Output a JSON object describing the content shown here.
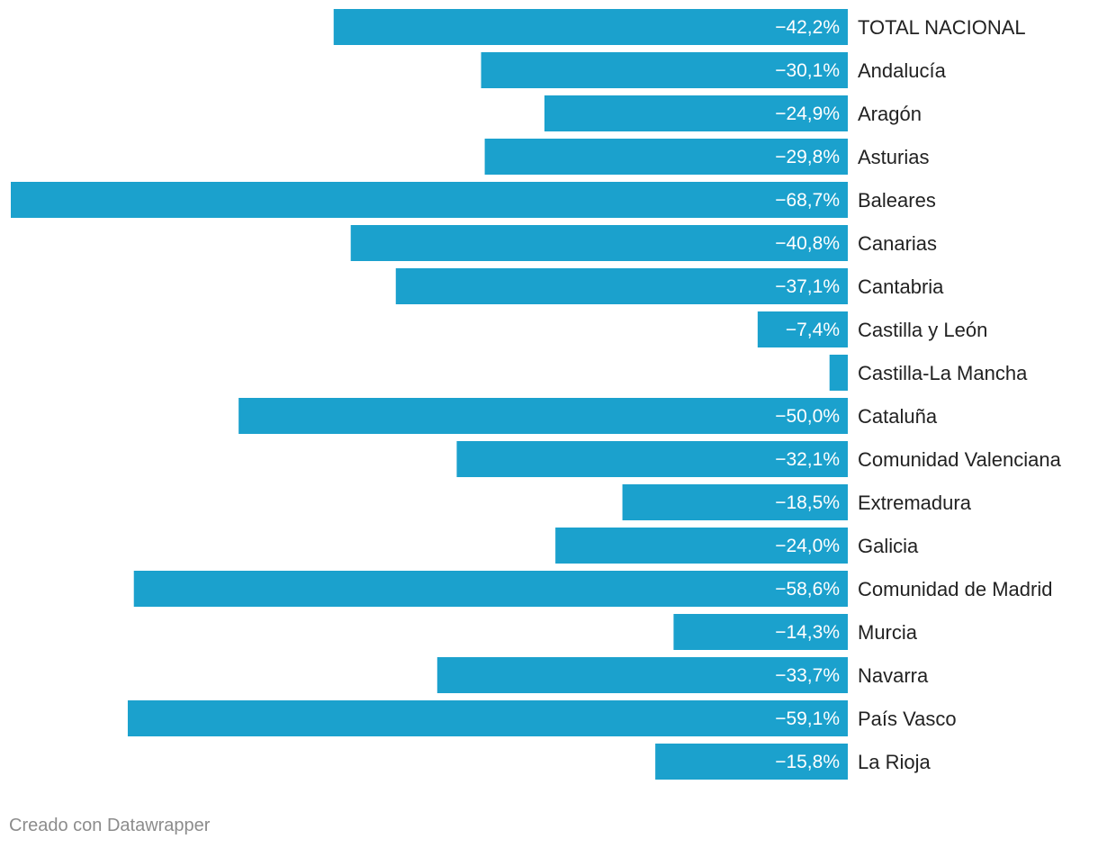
{
  "chart_data": {
    "type": "bar",
    "orientation": "horizontal",
    "bar_color": "#1ba1cd",
    "categories": [
      "TOTAL NACIONAL",
      "Andalucía",
      "Aragón",
      "Asturias",
      "Baleares",
      "Canarias",
      "Cantabria",
      "Castilla y León",
      "Castilla-La Mancha",
      "Cataluña",
      "Comunidad Valenciana",
      "Extremadura",
      "Galicia",
      "Comunidad de Madrid",
      "Murcia",
      "Navarra",
      "País Vasco",
      "La Rioja"
    ],
    "values": [
      -42.2,
      -30.1,
      -24.9,
      -29.8,
      -68.7,
      -40.8,
      -37.1,
      -7.4,
      -1.5,
      -50.0,
      -32.1,
      -18.5,
      -24.0,
      -58.6,
      -14.3,
      -33.7,
      -59.1,
      -15.8
    ],
    "value_labels": [
      "−42,2%",
      "−30,1%",
      "−24,9%",
      "−29,8%",
      "−68,7%",
      "−40,8%",
      "−37,1%",
      "−7,4%",
      "",
      "−50,0%",
      "−32,1%",
      "−18,5%",
      "−24,0%",
      "−58,6%",
      "−14,3%",
      "−33,7%",
      "−59,1%",
      "−15,8%"
    ],
    "xlim": [
      -68.7,
      0
    ]
  },
  "footer": {
    "credit": "Creado con Datawrapper"
  }
}
